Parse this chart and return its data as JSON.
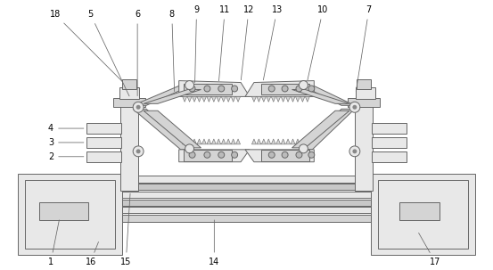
{
  "bg_color": "#ffffff",
  "line_color": "#666666",
  "label_color": "#000000",
  "fc_light": "#e8e8e8",
  "fc_mid": "#d4d4d4",
  "fc_dark": "#c0c0c0",
  "figsize": [
    5.53,
    3.03
  ],
  "dpi": 100
}
